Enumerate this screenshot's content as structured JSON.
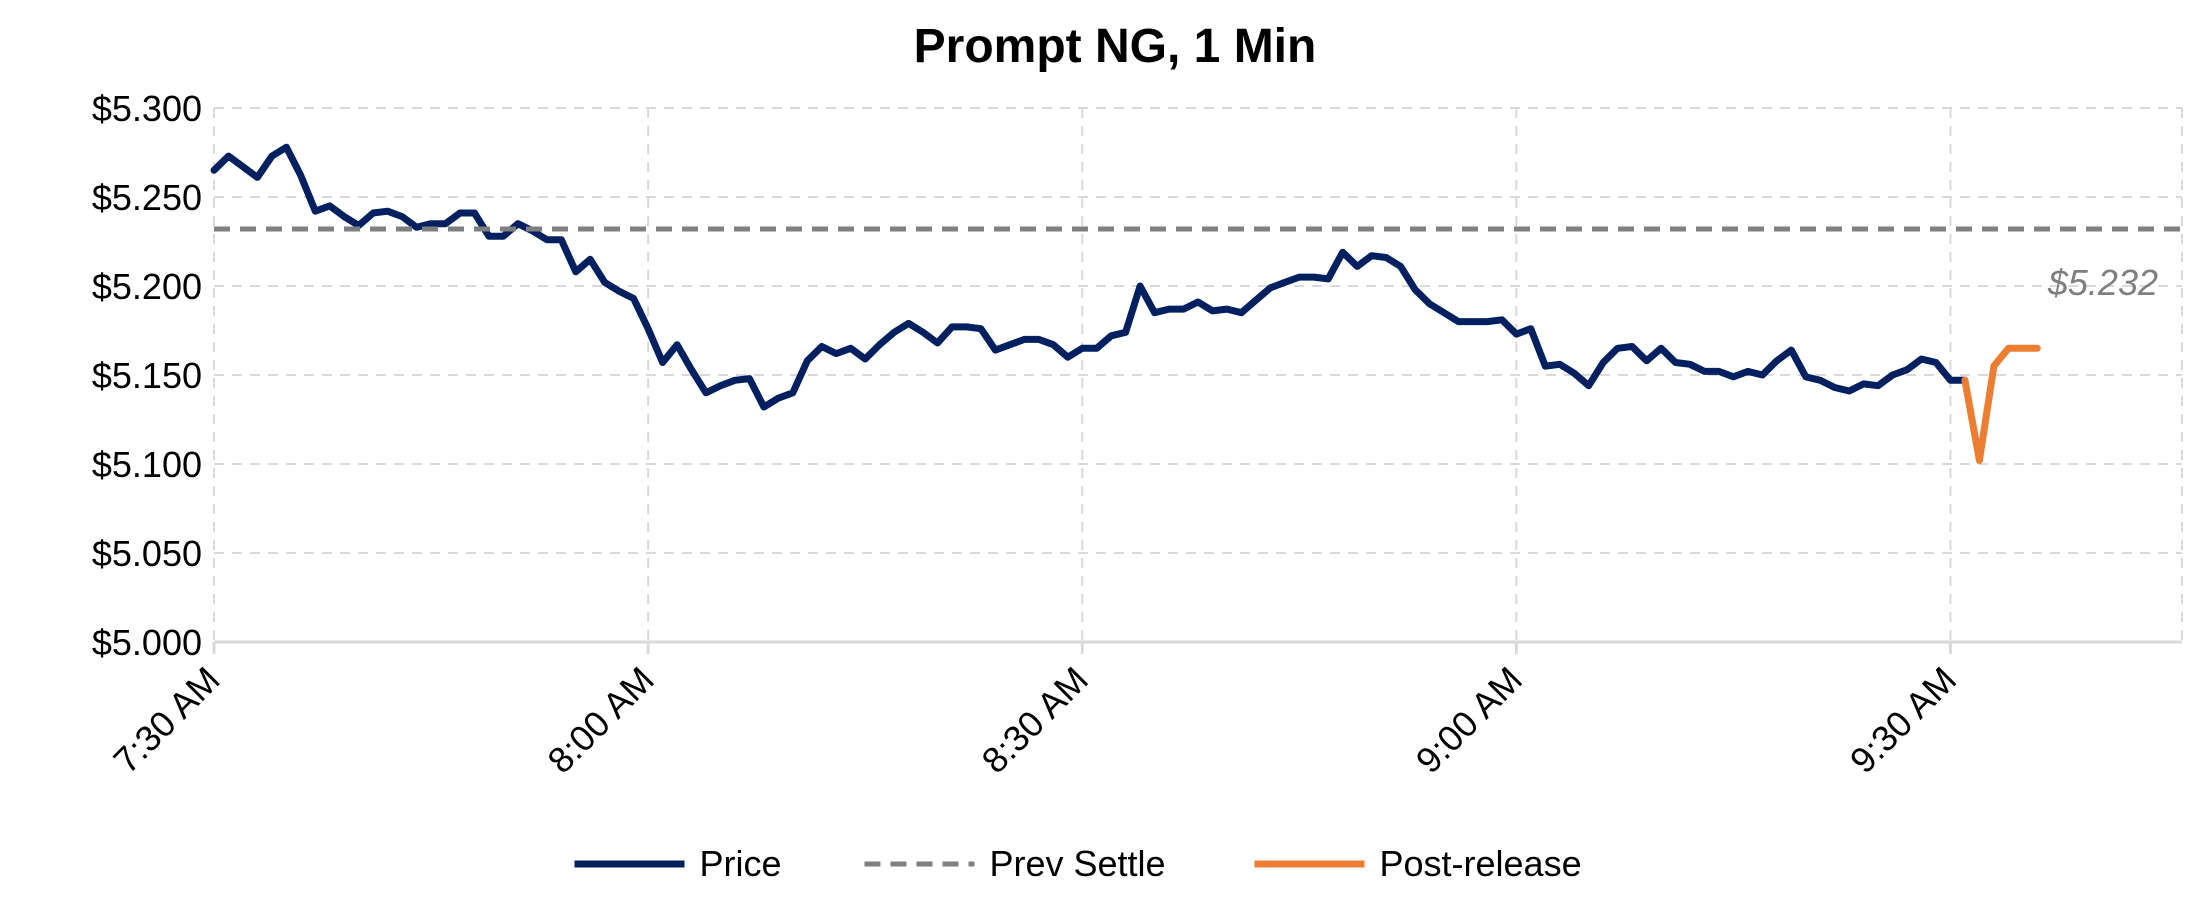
{
  "chart_data": {
    "type": "line",
    "title": "Prompt NG, 1 Min",
    "xlabel": "",
    "ylabel": "",
    "ylim": [
      5.0,
      5.3
    ],
    "y_ticks": [
      "$5.000",
      "$5.050",
      "$5.100",
      "$5.150",
      "$5.200",
      "$5.250",
      "$5.300"
    ],
    "x_ticks": [
      "7:30 AM",
      "8:00 AM",
      "8:30 AM",
      "9:00 AM",
      "9:30 AM"
    ],
    "x_range_minutes": [
      0,
      136
    ],
    "grid": true,
    "legend_position": "bottom",
    "series": [
      {
        "name": "Price",
        "color": "#002060",
        "style": "solid",
        "x_minutes": [
          0,
          1,
          2,
          3,
          4,
          5,
          6,
          7,
          8,
          9,
          10,
          11,
          12,
          13,
          14,
          15,
          16,
          17,
          18,
          19,
          20,
          21,
          22,
          23,
          24,
          25,
          26,
          27,
          28,
          29,
          30,
          31,
          32,
          33,
          34,
          35,
          36,
          37,
          38,
          39,
          40,
          41,
          42,
          43,
          44,
          45,
          46,
          47,
          48,
          49,
          50,
          51,
          52,
          53,
          54,
          55,
          56,
          57,
          58,
          59,
          60,
          61,
          62,
          63,
          64,
          65,
          66,
          67,
          68,
          69,
          70,
          71,
          72,
          73,
          74,
          75,
          76,
          77,
          78,
          79,
          80,
          81,
          82,
          83,
          84,
          85,
          86,
          87,
          88,
          89,
          90,
          91,
          92,
          93,
          94,
          95,
          96,
          97,
          98,
          99,
          100,
          101,
          102,
          103,
          104,
          105,
          106,
          107,
          108,
          109,
          110,
          111,
          112,
          113,
          114,
          115,
          116,
          117,
          118,
          119,
          120,
          121
        ],
        "values": [
          5.265,
          5.273,
          5.267,
          5.261,
          5.273,
          5.278,
          5.262,
          5.242,
          5.245,
          5.239,
          5.234,
          5.241,
          5.242,
          5.239,
          5.233,
          5.235,
          5.235,
          5.241,
          5.241,
          5.228,
          5.228,
          5.235,
          5.231,
          5.226,
          5.226,
          5.208,
          5.215,
          5.202,
          5.197,
          5.193,
          5.176,
          5.157,
          5.167,
          5.153,
          5.14,
          5.144,
          5.147,
          5.148,
          5.132,
          5.137,
          5.14,
          5.158,
          5.166,
          5.162,
          5.165,
          5.159,
          5.167,
          5.174,
          5.179,
          5.174,
          5.168,
          5.177,
          5.177,
          5.176,
          5.164,
          5.167,
          5.17,
          5.17,
          5.167,
          5.16,
          5.165,
          5.165,
          5.172,
          5.174,
          5.2,
          5.185,
          5.187,
          5.187,
          5.191,
          5.186,
          5.187,
          5.185,
          5.192,
          5.199,
          5.202,
          5.205,
          5.205,
          5.204,
          5.219,
          5.211,
          5.217,
          5.216,
          5.211,
          5.198,
          5.19,
          5.185,
          5.18,
          5.18,
          5.18,
          5.181,
          5.173,
          5.176,
          5.155,
          5.156,
          5.151,
          5.144,
          5.157,
          5.165,
          5.166,
          5.158,
          5.165,
          5.157,
          5.156,
          5.152,
          5.152,
          5.149,
          5.152,
          5.15,
          5.158,
          5.164,
          5.149,
          5.147,
          5.143,
          5.141,
          5.145,
          5.144,
          5.15,
          5.153,
          5.159,
          5.157,
          5.147,
          5.147
        ]
      },
      {
        "name": "Prev Settle",
        "color": "#7f7f7f",
        "style": "dashed",
        "x_minutes": [
          0,
          136
        ],
        "values": [
          5.232,
          5.232
        ]
      },
      {
        "name": "Post-release",
        "color": "#ed7d31",
        "style": "solid",
        "x_minutes": [
          121,
          122,
          123,
          124,
          125,
          126
        ],
        "values": [
          5.147,
          5.102,
          5.155,
          5.165,
          5.165,
          5.165
        ]
      }
    ],
    "annotations": [
      {
        "text": "$5.232",
        "anchor_series": "Prev Settle"
      }
    ]
  }
}
